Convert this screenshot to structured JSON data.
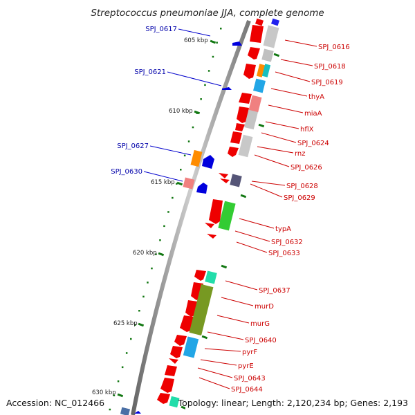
{
  "title": "Streptococcus pneumoniae JJA, complete genome",
  "footer": {
    "accession": "Accession: NC_012466",
    "summary": "Topology: linear; Length: 2,120,234 bp; Genes: 2,193"
  },
  "ticks": [
    "605 kbp",
    "610 kbp",
    "615 kbp",
    "620 kbp",
    "625 kbp",
    "630 kbp"
  ],
  "labels_right": [
    "SPJ_0616",
    "SPJ_0618",
    "SPJ_0619",
    "thyA",
    "miaA",
    "hflX",
    "SPJ_0624",
    "rnz",
    "SPJ_0626",
    "SPJ_0628",
    "SPJ_0629",
    "typA",
    "SPJ_0632",
    "SPJ_0633",
    "SPJ_0637",
    "murD",
    "murG",
    "SPJ_0640",
    "pyrF",
    "pyrE",
    "SPJ_0643",
    "SPJ_0644"
  ],
  "labels_left": [
    "SPJ_0617",
    "SPJ_0621",
    "SPJ_0627",
    "SPJ_0630"
  ],
  "colors": {
    "forward_gene": "#ee0000",
    "reverse_gene": "#0000dd",
    "label_right": "#cc0000",
    "label_left": "#0000aa",
    "backbone": "#888888",
    "tick": "#117711"
  }
}
